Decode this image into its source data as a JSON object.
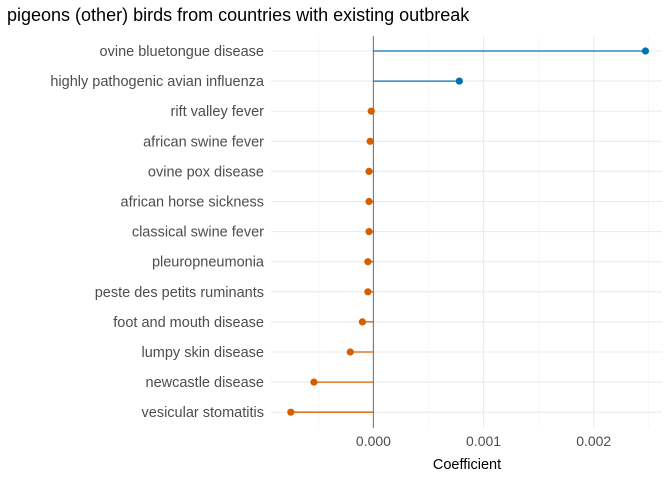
{
  "chart_data": {
    "type": "lollipop",
    "title": "pigeons (other) birds from countries with existing outbreak",
    "xlabel": "Coefficient",
    "ylabel": "",
    "xlim": [
      -0.00093,
      0.00262
    ],
    "x_ticks": [
      0.0,
      0.001,
      0.002
    ],
    "x_tick_labels": [
      "0.000",
      "0.001",
      "0.002"
    ],
    "x_minor_ticks": [
      -0.0005,
      0.0005,
      0.0015,
      0.0025
    ],
    "grid": true,
    "legend": "none",
    "colors": {
      "positive": "#0072B2",
      "negative": "#D55E00",
      "zero_line": "#7f7f7f"
    },
    "categories": [
      "ovine bluetongue disease",
      "highly pathogenic avian influenza",
      "rift valley fever",
      "african swine fever",
      "ovine pox disease",
      "african horse sickness",
      "classical swine fever",
      "pleuropneumonia",
      "peste des petits ruminants",
      "foot and mouth disease",
      "lumpy skin disease",
      "newcastle disease",
      "vesicular stomatitis"
    ],
    "values": [
      0.00247,
      0.00078,
      -2e-05,
      -3e-05,
      -4e-05,
      -4e-05,
      -4e-05,
      -5e-05,
      -5e-05,
      -0.0001,
      -0.00021,
      -0.00054,
      -0.00075
    ]
  }
}
